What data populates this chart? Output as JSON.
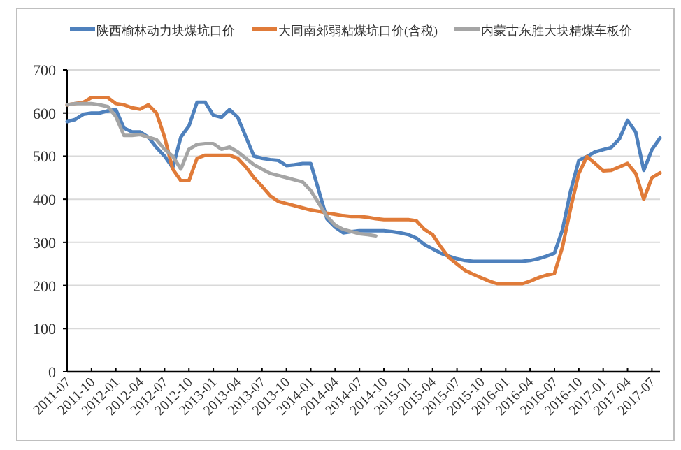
{
  "chart_data": {
    "type": "line",
    "legend": "top",
    "grid": "y",
    "x": [
      "2011-07",
      "2011-08",
      "2011-09",
      "2011-10",
      "2011-11",
      "2011-12",
      "2012-01",
      "2012-02",
      "2012-03",
      "2012-04",
      "2012-05",
      "2012-06",
      "2012-07",
      "2012-08",
      "2012-09",
      "2012-10",
      "2012-11",
      "2012-12",
      "2013-01",
      "2013-02",
      "2013-03",
      "2013-04",
      "2013-05",
      "2013-06",
      "2013-07",
      "2013-08",
      "2013-09",
      "2013-10",
      "2013-11",
      "2013-12",
      "2014-01",
      "2014-02",
      "2014-03",
      "2014-04",
      "2014-05",
      "2014-06",
      "2014-07",
      "2014-08",
      "2014-09",
      "2014-10",
      "2014-11",
      "2014-12",
      "2015-01",
      "2015-02",
      "2015-03",
      "2015-04",
      "2015-05",
      "2015-06",
      "2015-07",
      "2015-08",
      "2015-09",
      "2015-10",
      "2015-11",
      "2015-12",
      "2016-01",
      "2016-02",
      "2016-03",
      "2016-04",
      "2016-05",
      "2016-06",
      "2016-07",
      "2016-08",
      "2016-09",
      "2016-10",
      "2016-11",
      "2016-12",
      "2017-01",
      "2017-02",
      "2017-03",
      "2017-04",
      "2017-05",
      "2017-06",
      "2017-07",
      "2017-08"
    ],
    "series": [
      {
        "name": "陕西榆林动力块煤坑口价",
        "color": "#4f81bd",
        "values": [
          580,
          585,
          597,
          600,
          600,
          605,
          608,
          565,
          556,
          556,
          544,
          520,
          500,
          473,
          544,
          570,
          625,
          625,
          595,
          590,
          608,
          590,
          545,
          500,
          495,
          492,
          490,
          478,
          480,
          483,
          483,
          419,
          354,
          335,
          322,
          325,
          327,
          327,
          327,
          327,
          325,
          322,
          318,
          310,
          295,
          285,
          275,
          268,
          262,
          258,
          256,
          256,
          256,
          256,
          256,
          256,
          256,
          258,
          262,
          268,
          275,
          330,
          420,
          490,
          499,
          510,
          515,
          520,
          540,
          583,
          556,
          467,
          515,
          542
        ]
      },
      {
        "name": "大同南郊弱粘煤坑口价(含税)",
        "color": "#e07b39",
        "values": [
          619,
          622,
          625,
          636,
          636,
          636,
          622,
          619,
          612,
          609,
          619,
          600,
          544,
          470,
          443,
          443,
          495,
          502,
          502,
          502,
          502,
          495,
          475,
          450,
          430,
          408,
          395,
          390,
          385,
          380,
          375,
          372,
          368,
          365,
          362,
          360,
          360,
          358,
          355,
          353,
          353,
          353,
          353,
          350,
          330,
          318,
          290,
          265,
          250,
          235,
          226,
          218,
          210,
          204,
          204,
          204,
          204,
          210,
          218,
          224,
          228,
          290,
          380,
          460,
          499,
          483,
          466,
          467,
          475,
          483,
          460,
          400,
          450,
          461
        ]
      },
      {
        "name": "内蒙古东胜大块精煤车板价",
        "color": "#a5a5a5",
        "values": [
          619,
          622,
          622,
          622,
          619,
          615,
          592,
          548,
          548,
          550,
          544,
          538,
          516,
          500,
          470,
          516,
          527,
          529,
          529,
          516,
          521,
          510,
          495,
          480,
          470,
          460,
          455,
          450,
          445,
          440,
          420,
          390,
          360,
          340,
          330,
          325,
          320,
          318,
          315,
          null,
          null,
          null,
          null,
          null,
          null,
          null,
          null,
          null,
          null,
          null,
          null,
          null,
          null,
          null,
          null,
          null,
          null,
          null,
          null,
          null,
          null,
          null,
          null,
          null,
          null,
          null,
          null,
          null,
          null,
          null,
          null,
          null,
          null,
          null
        ]
      }
    ],
    "xlim": [
      "2011-07",
      "2017-08"
    ],
    "xticks": [
      "2011-07",
      "2011-10",
      "2012-01",
      "2012-04",
      "2012-07",
      "2012-10",
      "2013-01",
      "2013-04",
      "2013-07",
      "2013-10",
      "2014-01",
      "2014-04",
      "2014-07",
      "2014-10",
      "2015-01",
      "2015-04",
      "2015-07",
      "2015-10",
      "2016-01",
      "2016-04",
      "2016-07",
      "2016-10",
      "2017-01",
      "2017-04",
      "2017-07"
    ],
    "ylim": [
      0,
      700
    ],
    "yticks": [
      0,
      100,
      200,
      300,
      400,
      500,
      600,
      700
    ]
  }
}
